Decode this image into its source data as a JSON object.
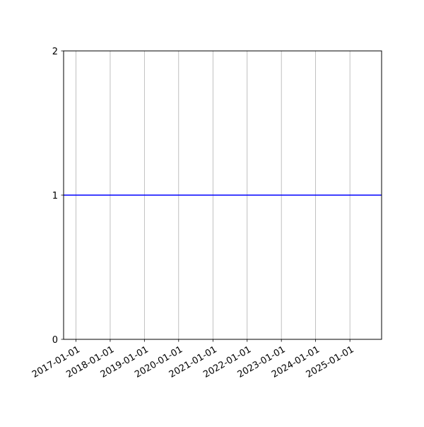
{
  "chart_data": {
    "type": "line",
    "title": "",
    "xlabel": "",
    "ylabel": "",
    "x_type": "date",
    "xlim": [
      "2016-08-22",
      "2025-12-05"
    ],
    "ylim": [
      0,
      2
    ],
    "x_ticks": [
      "2017-01-01",
      "2018-01-01",
      "2019-01-01",
      "2020-01-01",
      "2021-01-01",
      "2022-01-01",
      "2023-01-01",
      "2024-01-01",
      "2025-01-01"
    ],
    "y_ticks": [
      "0",
      "1",
      "2"
    ],
    "grid": "x-axis vertical gridlines",
    "series": [
      {
        "color": "#0000ff",
        "x": [
          "2016-08-22",
          "2025-12-05"
        ],
        "y": [
          1,
          1
        ]
      }
    ]
  }
}
